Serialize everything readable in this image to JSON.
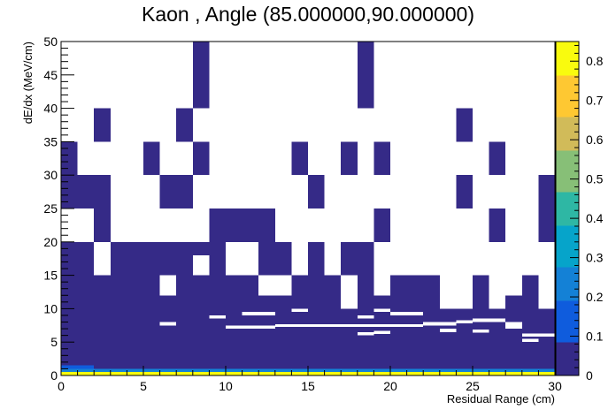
{
  "chart_data": {
    "type": "heatmap",
    "title": "Kaon , Angle (85.000000,90.000000)",
    "xlabel": "Residual Range (cm)",
    "ylabel": "dE/dx (MeV/cm)",
    "xlim": [
      0,
      30
    ],
    "ylim": [
      0,
      50
    ],
    "zlim": [
      0,
      0.85
    ],
    "x_ticks": [
      "0",
      "5",
      "10",
      "15",
      "20",
      "25",
      "30"
    ],
    "y_ticks": [
      "0",
      "5",
      "10",
      "15",
      "20",
      "25",
      "30",
      "35",
      "40",
      "45",
      "50"
    ],
    "z_ticks": [
      "0",
      "0.1",
      "0.2",
      "0.3",
      "0.4",
      "0.5",
      "0.6",
      "0.7",
      "0.8"
    ],
    "colorbar": [
      "#352a87",
      "#0f5cdd",
      "#1481d6",
      "#06a4ca",
      "#2eb7a4",
      "#87bf77",
      "#d1bb59",
      "#fec832",
      "#f9fb0e"
    ],
    "cell_size": [
      1,
      5
    ],
    "cells": [
      {
        "x": 0,
        "y": 0,
        "w": 30,
        "h": 0.5,
        "z": 0.82
      },
      {
        "x": 0,
        "y": 0.5,
        "w": 30,
        "h": 0.5,
        "z": 0.25
      },
      {
        "x": 0,
        "y": 1,
        "w": 2,
        "h": 0.5,
        "z": 0.12
      },
      {
        "x": 0,
        "y": 1,
        "w": 30,
        "h": 6,
        "z": 0.04
      },
      {
        "x": 0,
        "y": 7,
        "w": 2,
        "h": 13,
        "z": 0.02
      },
      {
        "x": 2,
        "y": 7,
        "w": 28,
        "h": 1,
        "z": 0.02
      },
      {
        "x": 0,
        "y": 25,
        "w": 1,
        "h": 10,
        "z": 0.01
      },
      {
        "x": 1,
        "y": 25,
        "w": 1,
        "h": 5,
        "z": 0.01
      },
      {
        "x": 2,
        "y": 25,
        "w": 1,
        "h": 5,
        "z": 0.01
      },
      {
        "x": 2,
        "y": 20,
        "w": 1,
        "h": 5,
        "z": 0.01
      },
      {
        "x": 2,
        "y": 35,
        "w": 1,
        "h": 5,
        "z": 0.01
      },
      {
        "x": 2,
        "y": 8,
        "w": 28,
        "h": 12,
        "z": 0.01
      },
      {
        "x": 5,
        "y": 30,
        "w": 1,
        "h": 5,
        "z": 0.01
      },
      {
        "x": 6,
        "y": 25,
        "w": 2,
        "h": 5,
        "z": 0.01
      },
      {
        "x": 7,
        "y": 35,
        "w": 1,
        "h": 5,
        "z": 0.01
      },
      {
        "x": 8,
        "y": 40,
        "w": 1,
        "h": 10,
        "z": 0.01
      },
      {
        "x": 8,
        "y": 30,
        "w": 1,
        "h": 5,
        "z": 0.01
      },
      {
        "x": 9,
        "y": 20,
        "w": 4,
        "h": 5,
        "z": 0.01
      },
      {
        "x": 14,
        "y": 30,
        "w": 1,
        "h": 5,
        "z": 0.01
      },
      {
        "x": 15,
        "y": 25,
        "w": 1,
        "h": 5,
        "z": 0.01
      },
      {
        "x": 17,
        "y": 30,
        "w": 1,
        "h": 5,
        "z": 0.01
      },
      {
        "x": 18,
        "y": 40,
        "w": 1,
        "h": 10,
        "z": 0.01
      },
      {
        "x": 19,
        "y": 30,
        "w": 1,
        "h": 5,
        "z": 0.01
      },
      {
        "x": 19,
        "y": 20,
        "w": 1,
        "h": 5,
        "z": 0.01
      },
      {
        "x": 24,
        "y": 35,
        "w": 1,
        "h": 5,
        "z": 0.01
      },
      {
        "x": 24,
        "y": 25,
        "w": 1,
        "h": 5,
        "z": 0.01
      },
      {
        "x": 26,
        "y": 30,
        "w": 1,
        "h": 5,
        "z": 0.01
      },
      {
        "x": 26,
        "y": 20,
        "w": 1,
        "h": 5,
        "z": 0.01
      },
      {
        "x": 29,
        "y": 20,
        "w": 1,
        "h": 5,
        "z": 0.01
      },
      {
        "x": 29,
        "y": 25,
        "w": 1,
        "h": 5,
        "z": 0.01
      }
    ],
    "gaps": [
      {
        "x": 2,
        "y": 15,
        "w": 1,
        "h": 5
      },
      {
        "x": 6,
        "y": 12,
        "w": 1,
        "h": 3
      },
      {
        "x": 8,
        "y": 15,
        "w": 1,
        "h": 3
      },
      {
        "x": 10,
        "y": 15,
        "w": 2,
        "h": 5
      },
      {
        "x": 12,
        "y": 12,
        "w": 2,
        "h": 3
      },
      {
        "x": 14,
        "y": 15,
        "w": 1,
        "h": 5
      },
      {
        "x": 16,
        "y": 15,
        "w": 1,
        "h": 5
      },
      {
        "x": 17,
        "y": 10,
        "w": 1,
        "h": 5
      },
      {
        "x": 19,
        "y": 12,
        "w": 1,
        "h": 3
      },
      {
        "x": 19,
        "y": 15,
        "w": 11,
        "h": 5
      },
      {
        "x": 23,
        "y": 10,
        "w": 2,
        "h": 5
      },
      {
        "x": 26,
        "y": 10,
        "w": 1,
        "h": 5
      },
      {
        "x": 27,
        "y": 12,
        "w": 1,
        "h": 3
      },
      {
        "x": 29,
        "y": 10,
        "w": 1,
        "h": 8
      },
      {
        "x": 6,
        "y": 7.5,
        "w": 1,
        "h": 0.5
      },
      {
        "x": 9,
        "y": 8.5,
        "w": 1,
        "h": 0.5
      },
      {
        "x": 11,
        "y": 9,
        "w": 2,
        "h": 0.5
      },
      {
        "x": 14,
        "y": 9.5,
        "w": 1,
        "h": 0.5
      },
      {
        "x": 10,
        "y": 7,
        "w": 3,
        "h": 0.5
      },
      {
        "x": 13,
        "y": 7.3,
        "w": 9,
        "h": 0.4
      },
      {
        "x": 18,
        "y": 8.5,
        "w": 1,
        "h": 0.5
      },
      {
        "x": 19,
        "y": 9.5,
        "w": 1,
        "h": 0.5
      },
      {
        "x": 20,
        "y": 9,
        "w": 2,
        "h": 0.5
      },
      {
        "x": 22,
        "y": 7.5,
        "w": 2,
        "h": 0.5
      },
      {
        "x": 24,
        "y": 7.8,
        "w": 1,
        "h": 0.5
      },
      {
        "x": 25,
        "y": 8,
        "w": 2,
        "h": 0.5
      },
      {
        "x": 27,
        "y": 7,
        "w": 1,
        "h": 1
      },
      {
        "x": 18,
        "y": 6,
        "w": 1,
        "h": 0.5
      },
      {
        "x": 19,
        "y": 6.2,
        "w": 1,
        "h": 0.5
      },
      {
        "x": 23,
        "y": 6.5,
        "w": 1,
        "h": 0.5
      },
      {
        "x": 25,
        "y": 6.4,
        "w": 1,
        "h": 0.5
      },
      {
        "x": 28,
        "y": 5,
        "w": 1,
        "h": 0.5
      },
      {
        "x": 28,
        "y": 5.8,
        "w": 2,
        "h": 0.5
      }
    ]
  }
}
